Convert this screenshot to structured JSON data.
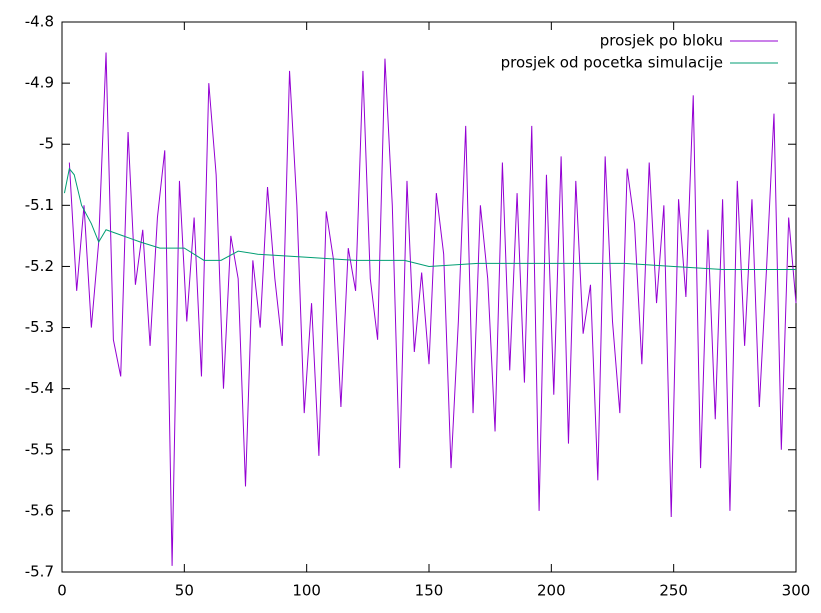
{
  "chart_data": {
    "type": "line",
    "xlim": [
      0,
      300
    ],
    "xticks": [
      0,
      50,
      100,
      150,
      200,
      250,
      300
    ],
    "ylim": [
      -5.7,
      -4.8
    ],
    "yticks": [
      -4.8,
      -4.9,
      -5,
      -5.1,
      -5.2,
      -5.3,
      -5.4,
      -5.5,
      -5.6,
      -5.7
    ],
    "legend": "top-right",
    "series": [
      {
        "name": "prosjek po bloku",
        "color": "#9400d3",
        "x": [
          3,
          6,
          9,
          12,
          15,
          18,
          21,
          24,
          27,
          30,
          33,
          36,
          39,
          42,
          45,
          48,
          51,
          54,
          57,
          60,
          63,
          66,
          69,
          72,
          75,
          78,
          81,
          84,
          87,
          90,
          93,
          96,
          99,
          102,
          105,
          108,
          111,
          114,
          117,
          120,
          123,
          126,
          129,
          132,
          135,
          138,
          141,
          144,
          147,
          150,
          153,
          156,
          159,
          162,
          165,
          168,
          171,
          174,
          177,
          180,
          183,
          186,
          189,
          192,
          195,
          198,
          201,
          204,
          207,
          210,
          213,
          216,
          219,
          222,
          225,
          228,
          231,
          234,
          237,
          240,
          243,
          246,
          249,
          252,
          255,
          258,
          261,
          264,
          267,
          270,
          273,
          276,
          279,
          282,
          285,
          288,
          291,
          294,
          297,
          300
        ],
        "values": [
          -5.03,
          -5.24,
          -5.1,
          -5.3,
          -5.16,
          -4.85,
          -5.32,
          -5.38,
          -4.98,
          -5.23,
          -5.14,
          -5.33,
          -5.12,
          -5.01,
          -5.69,
          -5.06,
          -5.29,
          -5.12,
          -5.38,
          -4.9,
          -5.05,
          -5.4,
          -5.15,
          -5.22,
          -5.56,
          -5.19,
          -5.3,
          -5.07,
          -5.22,
          -5.33,
          -4.88,
          -5.1,
          -5.44,
          -5.26,
          -5.51,
          -5.11,
          -5.19,
          -5.43,
          -5.17,
          -5.24,
          -4.88,
          -5.22,
          -5.32,
          -4.86,
          -5.1,
          -5.53,
          -5.06,
          -5.34,
          -5.21,
          -5.36,
          -5.08,
          -5.18,
          -5.53,
          -5.29,
          -4.97,
          -5.44,
          -5.1,
          -5.22,
          -5.47,
          -5.03,
          -5.37,
          -5.08,
          -5.39,
          -4.97,
          -5.6,
          -5.05,
          -5.41,
          -5.02,
          -5.49,
          -5.06,
          -5.31,
          -5.23,
          -5.55,
          -5.02,
          -5.29,
          -5.44,
          -5.04,
          -5.13,
          -5.36,
          -5.03,
          -5.26,
          -5.1,
          -5.61,
          -5.09,
          -5.25,
          -4.92,
          -5.53,
          -5.14,
          -5.45,
          -5.09,
          -5.6,
          -5.06,
          -5.33,
          -5.09,
          -5.43,
          -5.2,
          -4.95,
          -5.5,
          -5.12,
          -5.26
        ]
      },
      {
        "name": "prosjek od pocetka simulacije",
        "color": "#009e73",
        "x": [
          1,
          3,
          5,
          8,
          12,
          15,
          18,
          25,
          32,
          40,
          50,
          58,
          65,
          72,
          80,
          100,
          120,
          140,
          150,
          170,
          190,
          210,
          230,
          250,
          270,
          300
        ],
        "values": [
          -5.08,
          -5.04,
          -5.05,
          -5.1,
          -5.13,
          -5.16,
          -5.14,
          -5.15,
          -5.16,
          -5.17,
          -5.17,
          -5.19,
          -5.19,
          -5.175,
          -5.18,
          -5.185,
          -5.19,
          -5.19,
          -5.2,
          -5.195,
          -5.195,
          -5.195,
          -5.195,
          -5.2,
          -5.205,
          -5.205
        ]
      }
    ]
  }
}
